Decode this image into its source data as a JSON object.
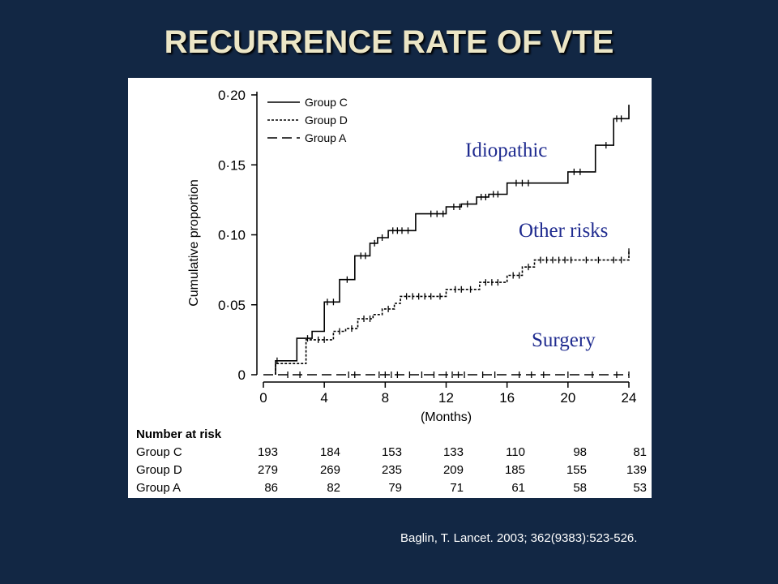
{
  "slide": {
    "title": "RECURRENCE RATE OF VTE",
    "citation": "Baglin, T.  Lancet. 2003; 362(9383):523-526.",
    "background_color": "#122744",
    "title_color": "#ece6c6"
  },
  "chart_data": {
    "type": "line",
    "subtype": "kaplan-meier step",
    "xlabel": "(Months)",
    "ylabel": "Cumulative proportion",
    "xlim": [
      0,
      24
    ],
    "ylim": [
      0,
      0.2
    ],
    "xticks": [
      0,
      4,
      8,
      12,
      16,
      20,
      24
    ],
    "yticks": [
      0,
      0.05,
      0.1,
      0.15,
      0.2
    ],
    "xtick_labels": [
      "0",
      "4",
      "8",
      "12",
      "16",
      "20",
      "24"
    ],
    "ytick_labels": [
      "0",
      "0·05",
      "0·10",
      "0·15",
      "0·20"
    ],
    "grid": false,
    "legend_position": "top-left",
    "annotations": [
      {
        "text": "Idiopathic",
        "series": "Group C",
        "color": "#1f2b8f"
      },
      {
        "text": "Other risks",
        "series": "Group D",
        "color": "#1f2b8f"
      },
      {
        "text": "Surgery",
        "series": "Group A",
        "color": "#1f2b8f"
      }
    ],
    "series": [
      {
        "name": "Group C",
        "line_style": "solid",
        "steps": [
          [
            0.8,
            0
          ],
          [
            0.8,
            0.01
          ],
          [
            2.2,
            0.01
          ],
          [
            2.2,
            0.026
          ],
          [
            3.2,
            0.026
          ],
          [
            3.2,
            0.031
          ],
          [
            4.0,
            0.031
          ],
          [
            4.0,
            0.052
          ],
          [
            5.0,
            0.052
          ],
          [
            5.0,
            0.068
          ],
          [
            6.0,
            0.068
          ],
          [
            6.0,
            0.085
          ],
          [
            7.0,
            0.085
          ],
          [
            7.0,
            0.094
          ],
          [
            7.5,
            0.094
          ],
          [
            7.5,
            0.098
          ],
          [
            8.2,
            0.098
          ],
          [
            8.2,
            0.103
          ],
          [
            10.0,
            0.103
          ],
          [
            10.0,
            0.115
          ],
          [
            12.0,
            0.115
          ],
          [
            12.0,
            0.12
          ],
          [
            13.0,
            0.12
          ],
          [
            13.0,
            0.122
          ],
          [
            14.0,
            0.122
          ],
          [
            14.0,
            0.127
          ],
          [
            14.8,
            0.127
          ],
          [
            14.8,
            0.129
          ],
          [
            16.0,
            0.129
          ],
          [
            16.0,
            0.137
          ],
          [
            20.0,
            0.137
          ],
          [
            20.0,
            0.145
          ],
          [
            21.8,
            0.145
          ],
          [
            21.8,
            0.164
          ],
          [
            23.0,
            0.164
          ],
          [
            23.0,
            0.183
          ],
          [
            24.0,
            0.183
          ],
          [
            24.0,
            0.193
          ]
        ],
        "censor_x": [
          0.9,
          2.9,
          4.2,
          4.6,
          5.5,
          6.4,
          6.7,
          7.3,
          7.8,
          8.5,
          8.8,
          9.1,
          9.5,
          11.0,
          11.4,
          11.8,
          12.5,
          12.9,
          13.4,
          14.3,
          14.6,
          15.1,
          15.4,
          16.6,
          17.0,
          17.4,
          20.4,
          20.8,
          22.5,
          23.2,
          23.5
        ]
      },
      {
        "name": "Group D",
        "line_style": "dotted",
        "steps": [
          [
            0.8,
            0
          ],
          [
            0.8,
            0.008
          ],
          [
            2.8,
            0.008
          ],
          [
            2.8,
            0.025
          ],
          [
            4.6,
            0.025
          ],
          [
            4.6,
            0.031
          ],
          [
            5.4,
            0.031
          ],
          [
            5.4,
            0.033
          ],
          [
            6.2,
            0.033
          ],
          [
            6.2,
            0.04
          ],
          [
            7.2,
            0.04
          ],
          [
            7.2,
            0.043
          ],
          [
            7.8,
            0.043
          ],
          [
            7.8,
            0.047
          ],
          [
            8.6,
            0.047
          ],
          [
            8.6,
            0.051
          ],
          [
            9.0,
            0.051
          ],
          [
            9.0,
            0.056
          ],
          [
            12.0,
            0.056
          ],
          [
            12.0,
            0.061
          ],
          [
            14.2,
            0.061
          ],
          [
            14.2,
            0.066
          ],
          [
            16.0,
            0.066
          ],
          [
            16.0,
            0.071
          ],
          [
            17.0,
            0.071
          ],
          [
            17.0,
            0.077
          ],
          [
            17.8,
            0.077
          ],
          [
            17.8,
            0.082
          ],
          [
            24.0,
            0.082
          ],
          [
            24.0,
            0.088
          ]
        ],
        "censor_x": [
          3.6,
          4.0,
          5.0,
          5.8,
          6.6,
          7.0,
          8.2,
          9.4,
          9.8,
          10.2,
          10.6,
          11.0,
          11.6,
          12.6,
          13.0,
          13.6,
          14.6,
          15.0,
          15.4,
          16.4,
          16.8,
          17.4,
          18.2,
          18.6,
          19.0,
          19.4,
          19.8,
          20.2,
          21.2,
          22.0,
          23.0,
          23.5,
          24.0
        ]
      },
      {
        "name": "Group A",
        "line_style": "dashed",
        "steps": [
          [
            0,
            0
          ],
          [
            24,
            0
          ]
        ],
        "censor_x": [
          1.6,
          2.4,
          5.6,
          6.0,
          7.6,
          8.0,
          8.4,
          8.8,
          9.6,
          10.4,
          11.2,
          12.0,
          12.4,
          12.8,
          13.2,
          14.4,
          15.2,
          16.8,
          17.6,
          18.4,
          20.0,
          21.6,
          23.2,
          24.0
        ]
      }
    ],
    "risk_table": {
      "title": "Number at risk",
      "rows": [
        {
          "label": "Group C",
          "values": [
            "193",
            "184",
            "153",
            "133",
            "110",
            "98",
            "81"
          ]
        },
        {
          "label": "Group D",
          "values": [
            "279",
            "269",
            "235",
            "209",
            "185",
            "155",
            "139"
          ]
        },
        {
          "label": "Group A",
          "values": [
            "86",
            "82",
            "79",
            "71",
            "61",
            "58",
            "53"
          ]
        }
      ]
    }
  }
}
